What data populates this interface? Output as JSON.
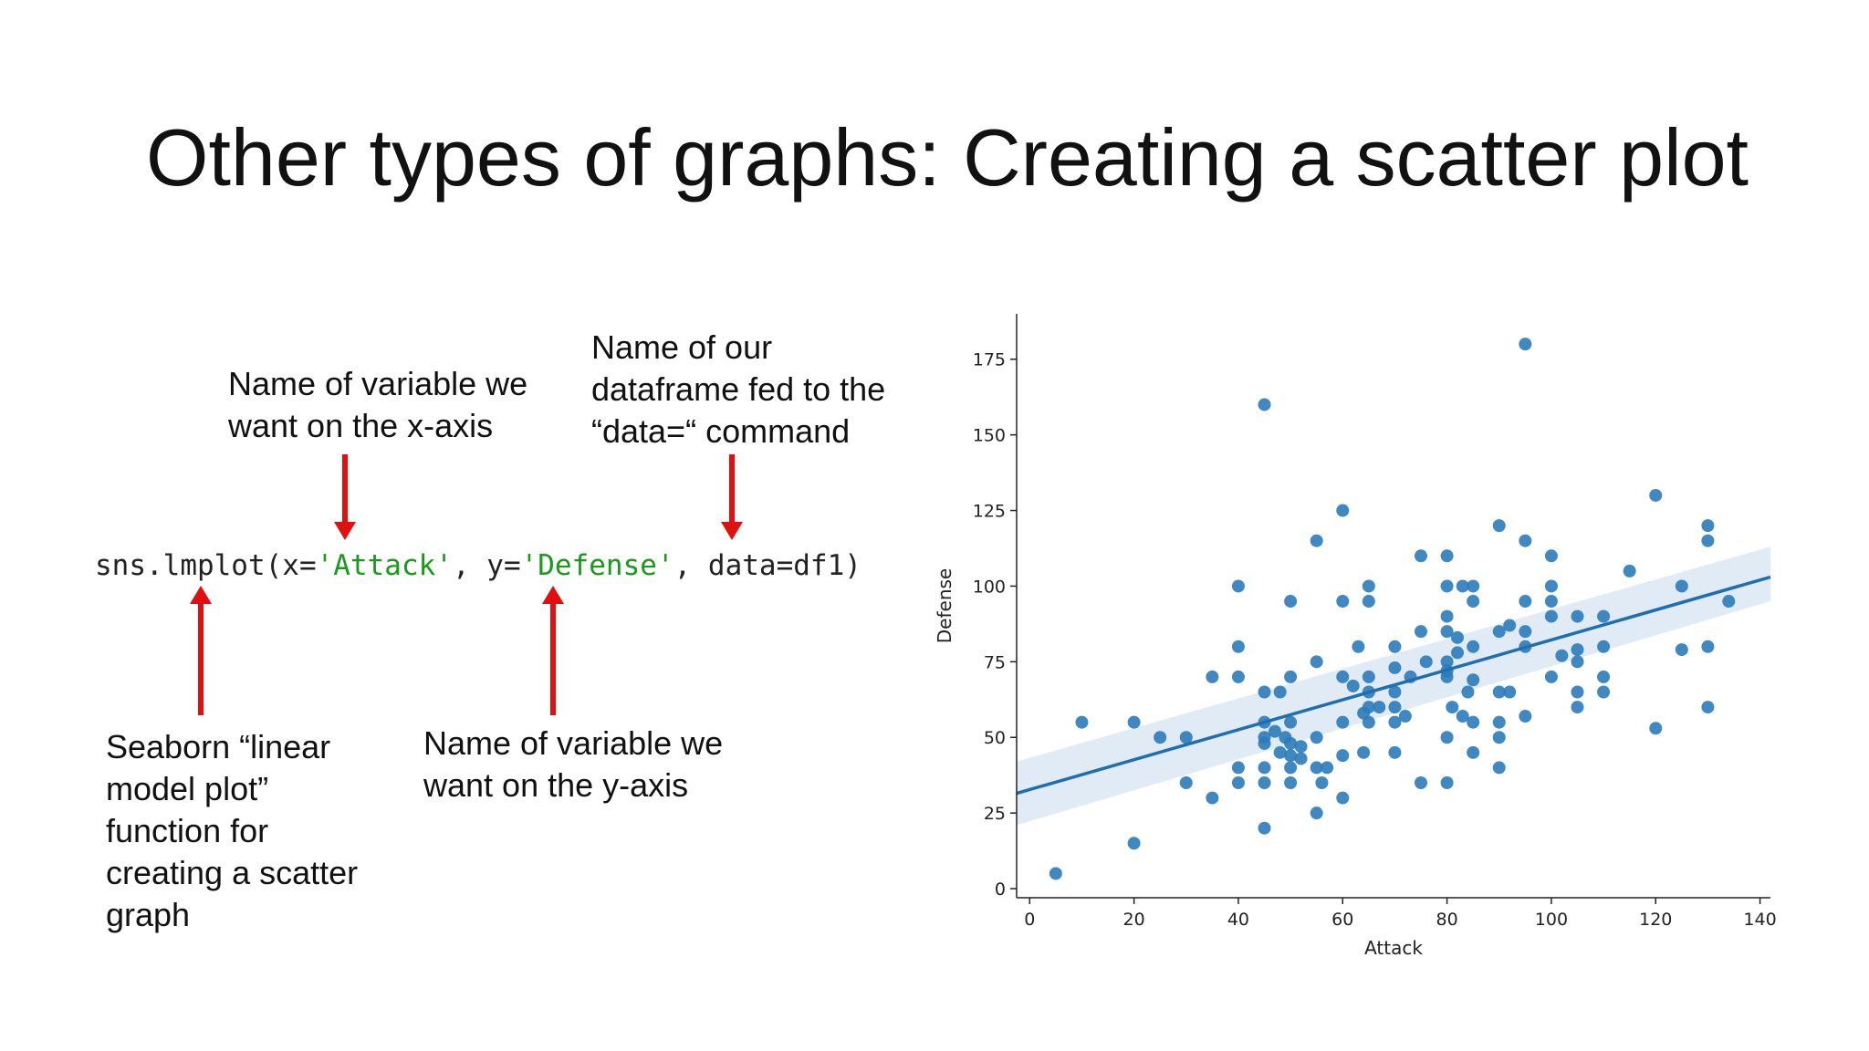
{
  "slide": {
    "title": "Other types of graphs: Creating a scatter plot"
  },
  "annotations": {
    "x_axis_note": "Name of variable we\nwant on the x-axis",
    "data_note": "Name of our\ndataframe fed to the\n“data=“ command",
    "function_note": "Seaborn “linear\nmodel plot”\nfunction for\ncreating a scatter\ngraph",
    "y_axis_note": "Name of variable we\nwant on the y-axis"
  },
  "code": {
    "prefix": "sns.lmplot(x=",
    "x_value": "'Attack'",
    "middle": ", y=",
    "y_value": "'Defense'",
    "suffix": ", data=df1)"
  },
  "colors": {
    "arrow": "#e01010",
    "point": "#2b7bba",
    "line": "#1f6fb0",
    "band": "#c6dbef"
  },
  "chart_data": {
    "type": "scatter",
    "xlabel": "Attack",
    "ylabel": "Defense",
    "xlim": [
      -2.5,
      142
    ],
    "ylim": [
      -3,
      190
    ],
    "xticks": [
      0,
      20,
      40,
      60,
      80,
      100,
      120,
      140
    ],
    "yticks": [
      0,
      25,
      50,
      75,
      100,
      125,
      150,
      175
    ],
    "grid": false,
    "regression": {
      "x": [
        -2.5,
        142
      ],
      "y": [
        31.5,
        103
      ],
      "ci_lower": [
        21,
        95
      ],
      "ci_upper": [
        42,
        113
      ]
    },
    "points": [
      [
        5,
        5
      ],
      [
        10,
        55
      ],
      [
        20,
        55
      ],
      [
        20,
        15
      ],
      [
        25,
        50
      ],
      [
        30,
        50
      ],
      [
        30,
        35
      ],
      [
        35,
        30
      ],
      [
        35,
        70
      ],
      [
        40,
        100
      ],
      [
        40,
        80
      ],
      [
        40,
        70
      ],
      [
        40,
        40
      ],
      [
        40,
        35
      ],
      [
        45,
        160
      ],
      [
        45,
        65
      ],
      [
        45,
        55
      ],
      [
        45,
        50
      ],
      [
        45,
        48
      ],
      [
        45,
        40
      ],
      [
        45,
        35
      ],
      [
        45,
        20
      ],
      [
        47,
        52
      ],
      [
        48,
        65
      ],
      [
        48,
        45
      ],
      [
        49,
        50
      ],
      [
        50,
        95
      ],
      [
        50,
        70
      ],
      [
        50,
        55
      ],
      [
        50,
        48
      ],
      [
        50,
        44
      ],
      [
        50,
        40
      ],
      [
        50,
        35
      ],
      [
        52,
        47
      ],
      [
        52,
        43
      ],
      [
        55,
        115
      ],
      [
        55,
        75
      ],
      [
        55,
        50
      ],
      [
        55,
        40
      ],
      [
        55,
        25
      ],
      [
        56,
        35
      ],
      [
        57,
        40
      ],
      [
        60,
        125
      ],
      [
        60,
        95
      ],
      [
        60,
        70
      ],
      [
        60,
        55
      ],
      [
        60,
        44
      ],
      [
        60,
        30
      ],
      [
        62,
        67
      ],
      [
        63,
        80
      ],
      [
        64,
        58
      ],
      [
        64,
        45
      ],
      [
        65,
        100
      ],
      [
        65,
        95
      ],
      [
        65,
        70
      ],
      [
        65,
        65
      ],
      [
        65,
        60
      ],
      [
        65,
        55
      ],
      [
        67,
        60
      ],
      [
        70,
        80
      ],
      [
        70,
        73
      ],
      [
        70,
        65
      ],
      [
        70,
        60
      ],
      [
        70,
        55
      ],
      [
        70,
        45
      ],
      [
        72,
        57
      ],
      [
        73,
        70
      ],
      [
        75,
        110
      ],
      [
        75,
        85
      ],
      [
        75,
        35
      ],
      [
        76,
        75
      ],
      [
        80,
        110
      ],
      [
        80,
        100
      ],
      [
        80,
        90
      ],
      [
        80,
        85
      ],
      [
        80,
        75
      ],
      [
        80,
        72
      ],
      [
        80,
        70
      ],
      [
        80,
        50
      ],
      [
        80,
        35
      ],
      [
        81,
        60
      ],
      [
        82,
        83
      ],
      [
        82,
        78
      ],
      [
        83,
        100
      ],
      [
        83,
        57
      ],
      [
        84,
        65
      ],
      [
        85,
        100
      ],
      [
        85,
        95
      ],
      [
        85,
        80
      ],
      [
        85,
        69
      ],
      [
        85,
        55
      ],
      [
        85,
        45
      ],
      [
        90,
        120
      ],
      [
        90,
        85
      ],
      [
        90,
        65
      ],
      [
        90,
        55
      ],
      [
        90,
        50
      ],
      [
        90,
        40
      ],
      [
        92,
        87
      ],
      [
        92,
        65
      ],
      [
        95,
        180
      ],
      [
        95,
        115
      ],
      [
        95,
        95
      ],
      [
        95,
        85
      ],
      [
        95,
        80
      ],
      [
        95,
        57
      ],
      [
        100,
        110
      ],
      [
        100,
        100
      ],
      [
        100,
        95
      ],
      [
        100,
        90
      ],
      [
        100,
        70
      ],
      [
        102,
        77
      ],
      [
        105,
        90
      ],
      [
        105,
        79
      ],
      [
        105,
        75
      ],
      [
        105,
        65
      ],
      [
        105,
        60
      ],
      [
        110,
        90
      ],
      [
        110,
        80
      ],
      [
        110,
        70
      ],
      [
        110,
        65
      ],
      [
        115,
        105
      ],
      [
        120,
        130
      ],
      [
        120,
        53
      ],
      [
        125,
        100
      ],
      [
        125,
        79
      ],
      [
        130,
        120
      ],
      [
        130,
        115
      ],
      [
        130,
        80
      ],
      [
        130,
        60
      ],
      [
        134,
        95
      ]
    ]
  }
}
